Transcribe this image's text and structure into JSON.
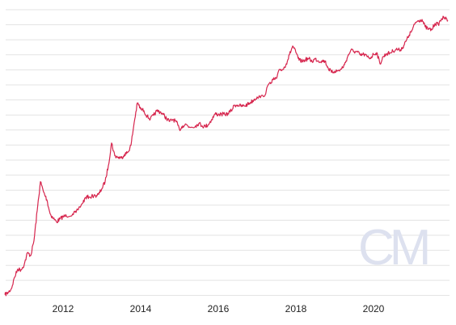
{
  "chart_data": {
    "type": "line",
    "title": "",
    "xlabel": "",
    "ylabel": "",
    "y_scale": "log",
    "grid": "horizontal",
    "legend": "none",
    "x_ticks": [
      "2012",
      "2014",
      "2016",
      "2018",
      "2020"
    ],
    "xlim": [
      "2010-07",
      "2021-12"
    ],
    "series": [
      {
        "color": "#d6254d",
        "points": [
          [
            "2010-07",
            0.35
          ],
          [
            "2010-08",
            0.39
          ],
          [
            "2010-09",
            0.48
          ],
          [
            "2010-10",
            0.9
          ],
          [
            "2010-11",
            1.4
          ],
          [
            "2010-12",
            1.35
          ],
          [
            "2011-01",
            1.8
          ],
          [
            "2011-02",
            3.4
          ],
          [
            "2011-03",
            2.9
          ],
          [
            "2011-04",
            6.5
          ],
          [
            "2011-05",
            33
          ],
          [
            "2011-06",
            160
          ],
          [
            "2011-07",
            90
          ],
          [
            "2011-08",
            60
          ],
          [
            "2011-09",
            28
          ],
          [
            "2011-10",
            22
          ],
          [
            "2011-11",
            18
          ],
          [
            "2011-12",
            21
          ],
          [
            "2012-01",
            24
          ],
          [
            "2012-02",
            25
          ],
          [
            "2012-04",
            28
          ],
          [
            "2012-05",
            30
          ],
          [
            "2012-07",
            50
          ],
          [
            "2012-08",
            68
          ],
          [
            "2012-09",
            70
          ],
          [
            "2012-11",
            75
          ],
          [
            "2012-12",
            80
          ],
          [
            "2013-01",
            110
          ],
          [
            "2013-02",
            160
          ],
          [
            "2013-03",
            380
          ],
          [
            "2013-04",
            1300
          ],
          [
            "2013-05",
            650
          ],
          [
            "2013-06",
            600
          ],
          [
            "2013-07",
            580
          ],
          [
            "2013-08",
            700
          ],
          [
            "2013-09",
            780
          ],
          [
            "2013-10",
            1150
          ],
          [
            "2013-11",
            4000
          ],
          [
            "2013-12",
            11500
          ],
          [
            "2014-01",
            8200
          ],
          [
            "2014-02",
            7500
          ],
          [
            "2014-03",
            5500
          ],
          [
            "2014-04",
            4800
          ],
          [
            "2014-05",
            5800
          ],
          [
            "2014-06",
            7400
          ],
          [
            "2014-07",
            7100
          ],
          [
            "2014-08",
            6100
          ],
          [
            "2014-09",
            4900
          ],
          [
            "2014-10",
            4200
          ],
          [
            "2014-11",
            4700
          ],
          [
            "2014-12",
            4100
          ],
          [
            "2015-01",
            2700
          ],
          [
            "2015-02",
            3300
          ],
          [
            "2015-03",
            3600
          ],
          [
            "2015-04",
            3100
          ],
          [
            "2015-06",
            3300
          ],
          [
            "2015-07",
            3800
          ],
          [
            "2015-08",
            3300
          ],
          [
            "2015-09",
            3200
          ],
          [
            "2015-10",
            3600
          ],
          [
            "2015-11",
            4700
          ],
          [
            "2015-12",
            6300
          ],
          [
            "2016-01",
            6100
          ],
          [
            "2016-02",
            6200
          ],
          [
            "2016-03",
            6100
          ],
          [
            "2016-04",
            6400
          ],
          [
            "2016-05",
            7500
          ],
          [
            "2016-06",
            10200
          ],
          [
            "2016-07",
            10200
          ],
          [
            "2016-08",
            9600
          ],
          [
            "2016-09",
            9700
          ],
          [
            "2016-10",
            10500
          ],
          [
            "2016-11",
            11800
          ],
          [
            "2016-12",
            13500
          ],
          [
            "2017-01",
            15800
          ],
          [
            "2017-03",
            16000
          ],
          [
            "2017-05",
            35000
          ],
          [
            "2017-06",
            40000
          ],
          [
            "2017-07",
            43000
          ],
          [
            "2017-08",
            70000
          ],
          [
            "2017-09",
            70000
          ],
          [
            "2017-10",
            95000
          ],
          [
            "2017-11",
            155000
          ],
          [
            "2017-12",
            250000
          ],
          [
            "2018-01",
            175000
          ],
          [
            "2018-02",
            115000
          ],
          [
            "2018-03",
            110000
          ],
          [
            "2018-04",
            120000
          ],
          [
            "2018-05",
            125000
          ],
          [
            "2018-06",
            108000
          ],
          [
            "2018-07",
            125000
          ],
          [
            "2018-08",
            110000
          ],
          [
            "2018-09",
            112000
          ],
          [
            "2018-10",
            110000
          ],
          [
            "2018-11",
            75000
          ],
          [
            "2018-12",
            60000
          ],
          [
            "2019-01",
            64000
          ],
          [
            "2019-02",
            65000
          ],
          [
            "2019-03",
            71000
          ],
          [
            "2019-04",
            90000
          ],
          [
            "2019-05",
            140000
          ],
          [
            "2019-06",
            200000
          ],
          [
            "2019-07",
            185000
          ],
          [
            "2019-08",
            180000
          ],
          [
            "2019-09",
            150000
          ],
          [
            "2019-10",
            160000
          ],
          [
            "2019-11",
            140000
          ],
          [
            "2019-12",
            130000
          ],
          [
            "2020-01",
            160000
          ],
          [
            "2020-02",
            175000
          ],
          [
            "2020-03",
            95000
          ],
          [
            "2020-04",
            140000
          ],
          [
            "2020-05",
            165000
          ],
          [
            "2020-06",
            170000
          ],
          [
            "2020-07",
            190000
          ],
          [
            "2020-08",
            210000
          ],
          [
            "2020-09",
            200000
          ],
          [
            "2020-10",
            230000
          ],
          [
            "2020-11",
            320000
          ],
          [
            "2020-12",
            450000
          ],
          [
            "2021-01",
            600000
          ],
          [
            "2021-02",
            900000
          ],
          [
            "2021-03",
            1000000
          ],
          [
            "2021-04",
            1050000
          ],
          [
            "2021-05",
            700000
          ],
          [
            "2021-06",
            620000
          ],
          [
            "2021-07",
            600000
          ],
          [
            "2021-08",
            850000
          ],
          [
            "2021-09",
            800000
          ],
          [
            "2021-10",
            1100000
          ],
          [
            "2021-11",
            1150000
          ],
          [
            "2021-12",
            1000000
          ]
        ]
      }
    ]
  },
  "watermark": {
    "text": "CM",
    "color": "#dde1ef"
  }
}
